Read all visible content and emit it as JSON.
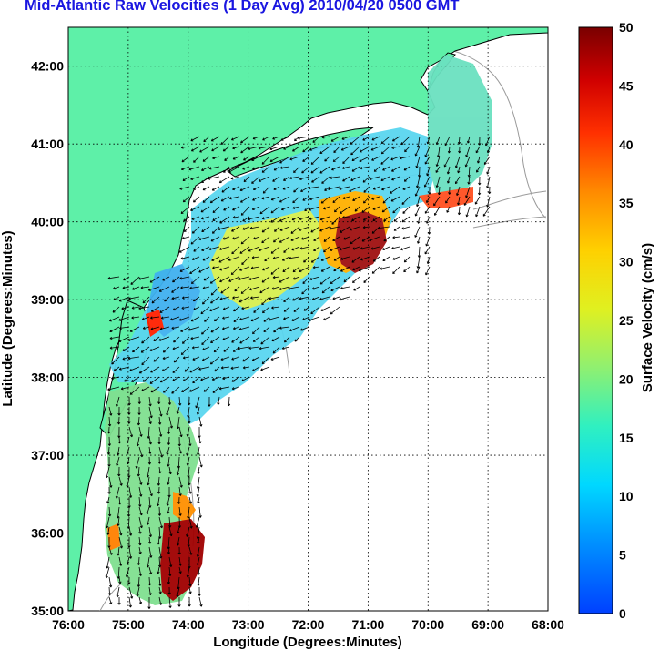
{
  "title": "Mid-Atlantic Raw Velocities (1 Day Avg) 2010/04/20 0500 GMT",
  "map": {
    "x_label": "Longitude (Degrees:Minutes)",
    "y_label": "Latitude (Degrees:Minutes)",
    "x_ticks": [
      "76:00",
      "75:00",
      "74:00",
      "73:00",
      "72:00",
      "71:00",
      "70:00",
      "69:00",
      "68:00"
    ],
    "y_ticks": [
      "42:00",
      "41:00",
      "40:00",
      "39:00",
      "38:00",
      "37:00",
      "36:00",
      "35:00"
    ],
    "lon_range": [
      -76,
      -68
    ],
    "lat_range": [
      35,
      42.5
    ],
    "grid": true,
    "colors": {
      "land": "#5ef0a8",
      "coast": "#000000",
      "bathymetry": "#9a9a9a",
      "grid": "#000000"
    }
  },
  "colorbar": {
    "label": "Surface Velocity (cm/s)",
    "ticks": [
      "0",
      "5",
      "10",
      "15",
      "20",
      "25",
      "30",
      "35",
      "40",
      "45",
      "50"
    ],
    "range": [
      0,
      50
    ],
    "colormap": "jet"
  }
}
